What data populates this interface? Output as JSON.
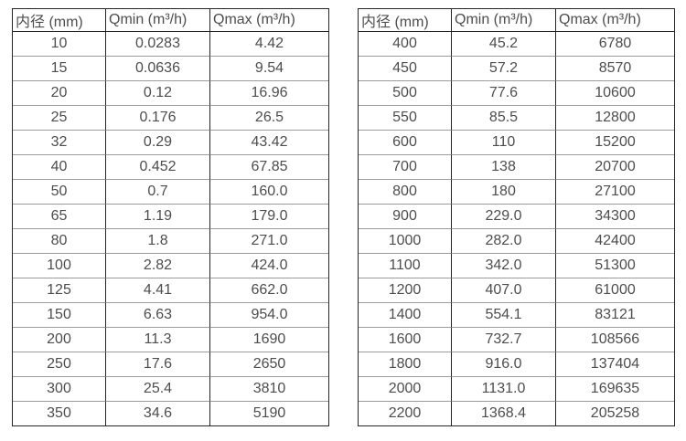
{
  "page": {
    "background": "#ffffff",
    "text_color": "#4d4d4d",
    "border_dark_color": "#262626",
    "border_light_color": "#9b9b9b"
  },
  "chart_data": [
    {
      "type": "table",
      "title": "",
      "columns": [
        "内径 (mm)",
        "Qmin (m³/h)",
        "Qmax (m³/h)"
      ],
      "rows": [
        [
          "10",
          "0.0283",
          "4.42"
        ],
        [
          "15",
          "0.0636",
          "9.54"
        ],
        [
          "20",
          "0.12",
          "16.96"
        ],
        [
          "25",
          "0.176",
          "26.5"
        ],
        [
          "32",
          "0.29",
          "43.42"
        ],
        [
          "40",
          "0.452",
          "67.85"
        ],
        [
          "50",
          "0.7",
          "160.0"
        ],
        [
          "65",
          "1.19",
          "179.0"
        ],
        [
          "80",
          "1.8",
          "271.0"
        ],
        [
          "100",
          "2.82",
          "424.0"
        ],
        [
          "125",
          "4.41",
          "662.0"
        ],
        [
          "150",
          "6.63",
          "954.0"
        ],
        [
          "200",
          "11.3",
          "1690"
        ],
        [
          "250",
          "17.6",
          "2650"
        ],
        [
          "300",
          "25.4",
          "3810"
        ],
        [
          "350",
          "34.6",
          "5190"
        ]
      ]
    },
    {
      "type": "table",
      "title": "",
      "columns": [
        "内径 (mm)",
        "Qmin (m³/h)",
        "Qmax (m³/h)"
      ],
      "rows": [
        [
          "400",
          "45.2",
          "6780"
        ],
        [
          "450",
          "57.2",
          "8570"
        ],
        [
          "500",
          "77.6",
          "10600"
        ],
        [
          "550",
          "85.5",
          "12800"
        ],
        [
          "600",
          "110",
          "15200"
        ],
        [
          "700",
          "138",
          "20700"
        ],
        [
          "800",
          "180",
          "27100"
        ],
        [
          "900",
          "229.0",
          "34300"
        ],
        [
          "1000",
          "282.0",
          "42400"
        ],
        [
          "1100",
          "342.0",
          "51300"
        ],
        [
          "1200",
          "407.0",
          "61000"
        ],
        [
          "1400",
          "554.1",
          "83121"
        ],
        [
          "1600",
          "732.7",
          "108566"
        ],
        [
          "1800",
          "916.0",
          "137404"
        ],
        [
          "2000",
          "1131.0",
          "169635"
        ],
        [
          "2200",
          "1368.4",
          "205258"
        ]
      ]
    }
  ]
}
